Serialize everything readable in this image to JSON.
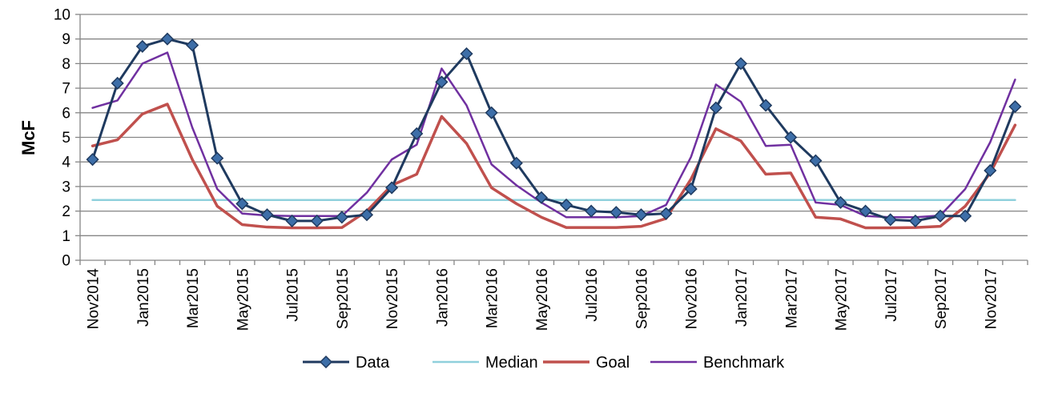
{
  "chart_data": {
    "type": "line",
    "ylabel": "McF",
    "xlabel": "",
    "title": "",
    "ylim": [
      0,
      10
    ],
    "yticks": [
      0,
      1,
      2,
      3,
      4,
      5,
      6,
      7,
      8,
      9,
      10
    ],
    "grid": true,
    "legend_position": "bottom",
    "categories": [
      "Nov2014",
      "Dec2014",
      "Jan2015",
      "Feb2015",
      "Mar2015",
      "Apr2015",
      "May2015",
      "Jun2015",
      "Jul2015",
      "Aug2015",
      "Sep2015",
      "Oct2015",
      "Nov2015",
      "Dec2015",
      "Jan2016",
      "Feb2016",
      "Mar2016",
      "Apr2016",
      "May2016",
      "Jun2016",
      "Jul2016",
      "Aug2016",
      "Sep2016",
      "Oct2016",
      "Nov2016",
      "Dec2016",
      "Jan2017",
      "Feb2017",
      "Mar2017",
      "Apr2017",
      "May2017",
      "Jun2017",
      "Jul2017",
      "Aug2017",
      "Sep2017",
      "Oct2017",
      "Nov2017",
      "Dec2017"
    ],
    "shown_tick_labels": [
      "Nov2014",
      "Jan2015",
      "Mar2015",
      "May2015",
      "Jul2015",
      "Sep2015",
      "Nov2015",
      "Jan2016",
      "Mar2016",
      "May2016",
      "Jul2016",
      "Sep2016",
      "Nov2016",
      "Jan2017",
      "Mar2017",
      "May2017",
      "Jul2017",
      "Sep2017",
      "Nov2017"
    ],
    "series": [
      {
        "name": "Data",
        "color": "#1f3a5f",
        "marker": "diamond",
        "marker_color": "#3d6ea8",
        "values": [
          4.1,
          7.2,
          8.7,
          9.0,
          8.75,
          4.15,
          2.3,
          1.85,
          1.6,
          1.6,
          1.75,
          1.85,
          2.95,
          5.15,
          7.25,
          8.4,
          6.0,
          3.95,
          2.55,
          2.25,
          2.0,
          1.95,
          1.85,
          1.9,
          2.9,
          6.2,
          8.0,
          6.3,
          5.0,
          4.05,
          2.35,
          2.0,
          1.65,
          1.6,
          1.8,
          1.8,
          3.65,
          6.25
        ]
      },
      {
        "name": "Median",
        "color": "#8fd0dc",
        "values": [
          2.45,
          2.45,
          2.45,
          2.45,
          2.45,
          2.45,
          2.45,
          2.45,
          2.45,
          2.45,
          2.45,
          2.45,
          2.45,
          2.45,
          2.45,
          2.45,
          2.45,
          2.45,
          2.45,
          2.45,
          2.45,
          2.45,
          2.45,
          2.45,
          2.45,
          2.45,
          2.45,
          2.45,
          2.45,
          2.45,
          2.45,
          2.45,
          2.45,
          2.45,
          2.45,
          2.45,
          2.45,
          2.45
        ]
      },
      {
        "name": "Goal",
        "color": "#c0504d",
        "values": [
          4.65,
          4.9,
          5.95,
          6.35,
          4.1,
          2.2,
          1.45,
          1.35,
          1.32,
          1.32,
          1.33,
          2.0,
          3.05,
          3.5,
          5.85,
          4.75,
          2.95,
          2.3,
          1.75,
          1.33,
          1.33,
          1.33,
          1.38,
          1.7,
          3.3,
          5.35,
          4.85,
          3.5,
          3.55,
          1.75,
          1.68,
          1.32,
          1.32,
          1.33,
          1.38,
          2.2,
          3.55,
          5.5
        ]
      },
      {
        "name": "Benchmark",
        "color": "#7030a0",
        "values": [
          6.2,
          6.5,
          8.0,
          8.45,
          5.4,
          2.9,
          1.9,
          1.82,
          1.8,
          1.8,
          1.8,
          2.75,
          4.1,
          4.7,
          7.8,
          6.3,
          3.9,
          3.05,
          2.35,
          1.75,
          1.75,
          1.75,
          1.8,
          2.25,
          4.2,
          7.15,
          6.45,
          4.65,
          4.7,
          2.35,
          2.25,
          1.8,
          1.75,
          1.75,
          1.82,
          2.9,
          4.8,
          7.35
        ]
      }
    ]
  }
}
